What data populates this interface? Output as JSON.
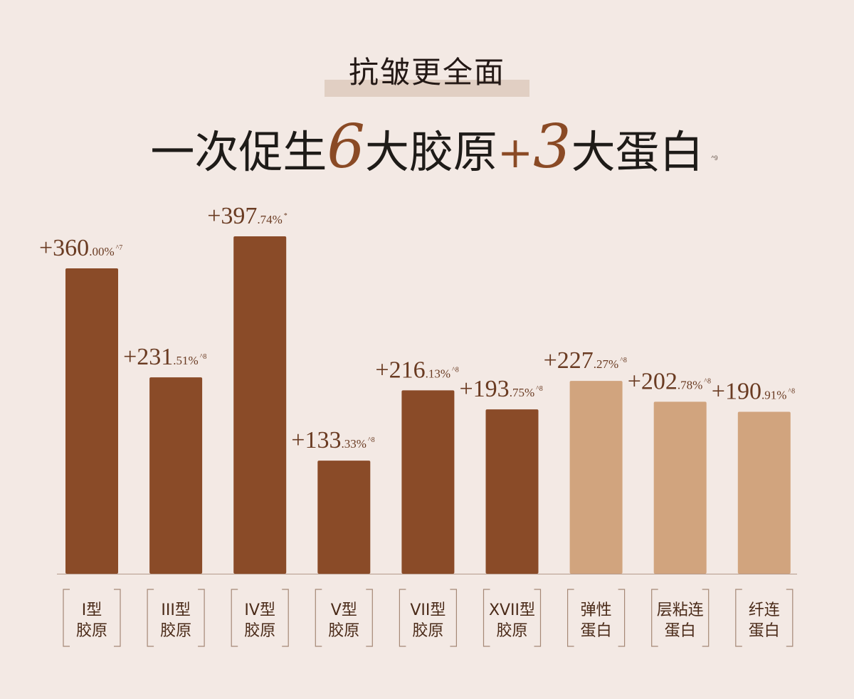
{
  "header": {
    "tag": "抗皱更全面",
    "headline_prefix": "一次促生",
    "headline_num1": "6",
    "headline_mid": "大胶原",
    "headline_plus": "+",
    "headline_num2": "3",
    "headline_suffix": "大蛋白",
    "headline_footnote": "^9"
  },
  "colors": {
    "collagen": "#8a4b28",
    "protein": "#d1a47e",
    "label": "#6a3b22",
    "frame": "#a58876"
  },
  "chart_data": {
    "type": "bar",
    "ylim": [
      0,
      420
    ],
    "categories": [
      {
        "line1": "I型",
        "line2": "胶原"
      },
      {
        "line1": "III型",
        "line2": "胶原"
      },
      {
        "line1": "IV型",
        "line2": "胶原"
      },
      {
        "line1": "V型",
        "line2": "胶原"
      },
      {
        "line1": "VII型",
        "line2": "胶原"
      },
      {
        "line1": "XVII型",
        "line2": "胶原"
      },
      {
        "line1": "弹性",
        "line2": "蛋白"
      },
      {
        "line1": "层粘连",
        "line2": "蛋白"
      },
      {
        "line1": "纤连",
        "line2": "蛋白"
      }
    ],
    "values": [
      360.0,
      231.51,
      397.74,
      133.33,
      216.13,
      193.75,
      227.27,
      202.78,
      190.91
    ],
    "labels": [
      {
        "big": "+360",
        "small": ".00%",
        "note": "^7"
      },
      {
        "big": "+231",
        "small": ".51%",
        "note": "^8"
      },
      {
        "big": "+397",
        "small": ".74%",
        "note": "*"
      },
      {
        "big": "+133",
        "small": ".33%",
        "note": "^8"
      },
      {
        "big": "+216",
        "small": ".13%",
        "note": "^8"
      },
      {
        "big": "+193",
        "small": ".75%",
        "note": "^8"
      },
      {
        "big": "+227",
        "small": ".27%",
        "note": "^8"
      },
      {
        "big": "+202",
        "small": ".78%",
        "note": "^8"
      },
      {
        "big": "+190",
        "small": ".91%",
        "note": "^8"
      }
    ],
    "groups": [
      "collagen",
      "collagen",
      "collagen",
      "collagen",
      "collagen",
      "collagen",
      "protein",
      "protein",
      "protein"
    ]
  }
}
